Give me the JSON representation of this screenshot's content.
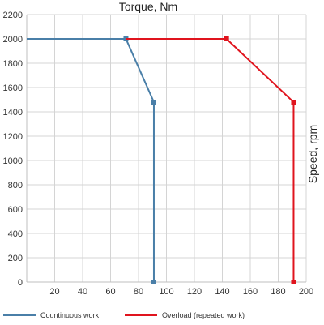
{
  "chart_data": {
    "type": "line",
    "title": "Torque, Nm",
    "xlabel": "Torque, Nm",
    "ylabel": "Speed, rpm",
    "xlim": [
      0,
      200
    ],
    "ylim": [
      0,
      2200
    ],
    "x_ticks": [
      20,
      40,
      60,
      80,
      100,
      120,
      140,
      160,
      180,
      200
    ],
    "y_ticks": [
      0,
      200,
      400,
      600,
      800,
      1000,
      1200,
      1400,
      1600,
      1800,
      2000,
      2200
    ],
    "grid": true,
    "legend_position": "bottom",
    "series": [
      {
        "name": "Countinuous work",
        "color": "#4a7fa8",
        "points": [
          [
            0,
            2000
          ],
          [
            71,
            2000
          ],
          [
            91,
            1480
          ],
          [
            91,
            0
          ]
        ],
        "markers": [
          [
            71,
            2000
          ],
          [
            91,
            1480
          ],
          [
            91,
            0
          ]
        ]
      },
      {
        "name": "Overload (repeated work)",
        "color": "#e0141e",
        "points": [
          [
            71,
            2000
          ],
          [
            143,
            2000
          ],
          [
            191,
            1480
          ],
          [
            191,
            0
          ]
        ],
        "markers": [
          [
            143,
            2000
          ],
          [
            191,
            1480
          ],
          [
            191,
            0
          ]
        ]
      }
    ]
  }
}
